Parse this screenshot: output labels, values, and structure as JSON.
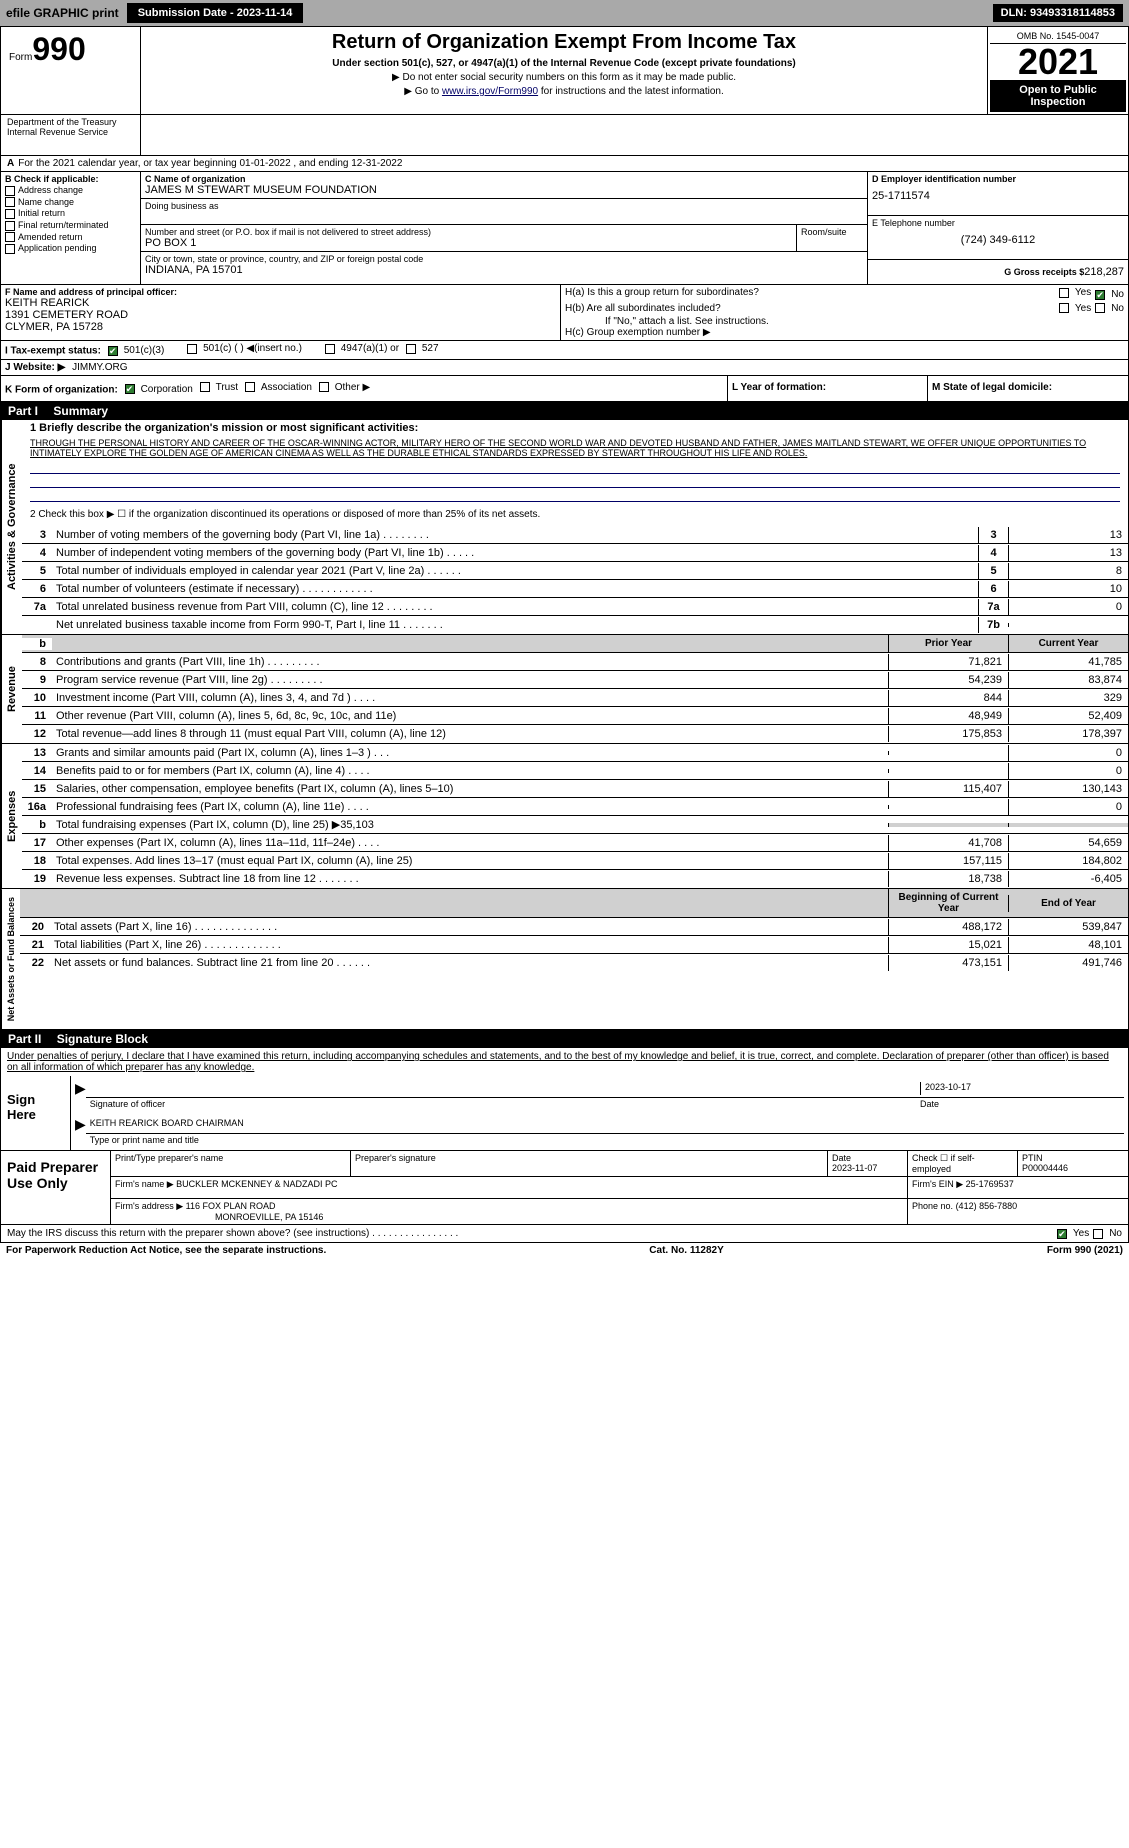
{
  "top_bar": {
    "efile": "efile GRAPHIC print",
    "submission": "Submission Date - 2023-11-14",
    "dln": "DLN: 93493318114853"
  },
  "header": {
    "form_label": "Form",
    "form_num": "990",
    "title": "Return of Organization Exempt From Income Tax",
    "subtitle": "Under section 501(c), 527, or 4947(a)(1) of the Internal Revenue Code (except private foundations)",
    "note1": "▶ Do not enter social security numbers on this form as it may be made public.",
    "note2_pre": "▶ Go to ",
    "note2_link": "www.irs.gov/Form990",
    "note2_post": " for instructions and the latest information.",
    "omb": "OMB No. 1545-0047",
    "year": "2021",
    "inspect": "Open to Public Inspection",
    "dept": "Department of the Treasury",
    "irs": "Internal Revenue Service"
  },
  "line_a": "For the 2021 calendar year, or tax year beginning 01-01-2022    , and ending 12-31-2022",
  "block_b": {
    "header": "B Check if applicable:",
    "items": [
      "Address change",
      "Name change",
      "Initial return",
      "Final return/terminated",
      "Amended return",
      "Application pending"
    ]
  },
  "block_c": {
    "name_label": "C Name of organization",
    "name": "JAMES M STEWART MUSEUM FOUNDATION",
    "dba_label": "Doing business as",
    "addr_label": "Number and street (or P.O. box if mail is not delivered to street address)",
    "room_label": "Room/suite",
    "addr": "PO BOX 1",
    "city_label": "City or town, state or province, country, and ZIP or foreign postal code",
    "city": "INDIANA, PA  15701"
  },
  "block_d": {
    "label": "D Employer identification number",
    "ein": "25-1711574"
  },
  "block_e": {
    "label": "E Telephone number",
    "phone": "(724) 349-6112"
  },
  "block_g": {
    "label": "G Gross receipts $",
    "amount": "218,287"
  },
  "block_f": {
    "label": "F Name and address of principal officer:",
    "name": "KEITH REARICK",
    "addr1": "1391 CEMETERY ROAD",
    "addr2": "CLYMER, PA  15728"
  },
  "block_h": {
    "ha": "H(a)  Is this a group return for subordinates?",
    "hb": "H(b)  Are all subordinates included?",
    "hb_note": "If \"No,\" attach a list. See instructions.",
    "hc": "H(c)  Group exemption number ▶",
    "yes": "Yes",
    "no": "No"
  },
  "block_i": {
    "label": "I   Tax-exempt status:",
    "opts": [
      "501(c)(3)",
      "501(c) (  ) ◀(insert no.)",
      "4947(a)(1) or",
      "527"
    ]
  },
  "block_j": {
    "label": "J   Website: ▶",
    "site": "JIMMY.ORG"
  },
  "block_k": {
    "label": "K Form of organization:",
    "opts": [
      "Corporation",
      "Trust",
      "Association",
      "Other ▶"
    ]
  },
  "block_l": {
    "label": "L Year of formation:"
  },
  "block_m": {
    "label": "M State of legal domicile:"
  },
  "part1": {
    "label": "Part I",
    "title": "Summary"
  },
  "summary": {
    "line1_label": "1  Briefly describe the organization's mission or most significant activities:",
    "line1_text": "THROUGH THE PERSONAL HISTORY AND CAREER OF THE OSCAR-WINNING ACTOR, MILITARY HERO OF THE SECOND WORLD WAR AND DEVOTED HUSBAND AND FATHER, JAMES MAITLAND STEWART, WE OFFER UNIQUE OPPORTUNITIES TO INTIMATELY EXPLORE THE GOLDEN AGE OF AMERICAN CINEMA AS WELL AS THE DURABLE ETHICAL STANDARDS EXPRESSED BY STEWART THROUGHOUT HIS LIFE AND ROLES.",
    "line2": "2   Check this box ▶ ☐  if the organization discontinued its operations or disposed of more than 25% of its net assets.",
    "gov_side": "Activities & Governance",
    "rev_side": "Revenue",
    "exp_side": "Expenses",
    "net_side": "Net Assets or Fund Balances",
    "lines_single": [
      {
        "n": "3",
        "t": "Number of voting members of the governing body (Part VI, line 1a)  .    .    .    .    .    .    .    .",
        "b": "3",
        "v": "13"
      },
      {
        "n": "4",
        "t": "Number of independent voting members of the governing body (Part VI, line 1b)   .    .    .    .    .",
        "b": "4",
        "v": "13"
      },
      {
        "n": "5",
        "t": "Total number of individuals employed in calendar year 2021 (Part V, line 2a)   .    .    .    .    .    .",
        "b": "5",
        "v": "8"
      },
      {
        "n": "6",
        "t": "Total number of volunteers (estimate if necessary)    .    .    .    .    .    .    .    .    .    .    .    .",
        "b": "6",
        "v": "10"
      },
      {
        "n": "7a",
        "t": "Total unrelated business revenue from Part VIII, column (C), line 12    .    .    .    .    .    .    .    .",
        "b": "7a",
        "v": "0"
      },
      {
        "n": "",
        "t": "Net unrelated business taxable income from Form 990-T, Part I, line 11   .    .    .    .    .    .    .",
        "b": "7b",
        "v": ""
      }
    ],
    "col_prior": "Prior Year",
    "col_current": "Current Year",
    "col_begin": "Beginning of Current Year",
    "col_end": "End of Year",
    "revenue": [
      {
        "n": "8",
        "t": "Contributions and grants (Part VIII, line 1h)   .    .    .    .    .    .    .    .    .",
        "p": "71,821",
        "c": "41,785"
      },
      {
        "n": "9",
        "t": "Program service revenue (Part VIII, line 2g)   .    .    .    .    .    .    .    .    .",
        "p": "54,239",
        "c": "83,874"
      },
      {
        "n": "10",
        "t": "Investment income (Part VIII, column (A), lines 3, 4, and 7d )   .    .    .    .",
        "p": "844",
        "c": "329"
      },
      {
        "n": "11",
        "t": "Other revenue (Part VIII, column (A), lines 5, 6d, 8c, 9c, 10c, and 11e)",
        "p": "48,949",
        "c": "52,409"
      },
      {
        "n": "12",
        "t": "Total revenue—add lines 8 through 11 (must equal Part VIII, column (A), line 12)",
        "p": "175,853",
        "c": "178,397"
      }
    ],
    "expenses": [
      {
        "n": "13",
        "t": "Grants and similar amounts paid (Part IX, column (A), lines 1–3 )  .    .    .",
        "p": "",
        "c": "0"
      },
      {
        "n": "14",
        "t": "Benefits paid to or for members (Part IX, column (A), line 4)   .    .    .    .",
        "p": "",
        "c": "0"
      },
      {
        "n": "15",
        "t": "Salaries, other compensation, employee benefits (Part IX, column (A), lines 5–10)",
        "p": "115,407",
        "c": "130,143"
      },
      {
        "n": "16a",
        "t": "Professional fundraising fees (Part IX, column (A), line 11e)   .    .    .    .",
        "p": "",
        "c": "0"
      },
      {
        "n": "b",
        "t": "Total fundraising expenses (Part IX, column (D), line 25) ▶35,103",
        "p": "GRAY",
        "c": "GRAY"
      },
      {
        "n": "17",
        "t": "Other expenses (Part IX, column (A), lines 11a–11d, 11f–24e)   .    .    .    .",
        "p": "41,708",
        "c": "54,659"
      },
      {
        "n": "18",
        "t": "Total expenses. Add lines 13–17 (must equal Part IX, column (A), line 25)",
        "p": "157,115",
        "c": "184,802"
      },
      {
        "n": "19",
        "t": "Revenue less expenses. Subtract line 18 from line 12  .    .    .    .    .    .    .",
        "p": "18,738",
        "c": "-6,405"
      }
    ],
    "net": [
      {
        "n": "20",
        "t": "Total assets (Part X, line 16)   .    .    .    .    .    .    .    .    .    .    .    .    .    .",
        "p": "488,172",
        "c": "539,847"
      },
      {
        "n": "21",
        "t": "Total liabilities (Part X, line 26)    .    .    .    .    .    .    .    .    .    .    .    .    .",
        "p": "15,021",
        "c": "48,101"
      },
      {
        "n": "22",
        "t": "Net assets or fund balances. Subtract line 21 from line 20  .    .    .    .    .    .",
        "p": "473,151",
        "c": "491,746"
      }
    ]
  },
  "part2": {
    "label": "Part II",
    "title": "Signature Block"
  },
  "sig": {
    "penalties": "Under penalties of perjury, I declare that I have examined this return, including accompanying schedules and statements, and to the best of my knowledge and belief, it is true, correct, and complete. Declaration of preparer (other than officer) is based on all information of which preparer has any knowledge.",
    "sign_here": "Sign Here",
    "sig_officer": "Signature of officer",
    "date": "Date",
    "date_val": "2023-10-17",
    "name_title": "KEITH REARICK  BOARD CHAIRMAN",
    "type_name": "Type or print name and title",
    "paid": "Paid Preparer Use Only",
    "print_name": "Print/Type preparer's name",
    "prep_sig": "Preparer's signature",
    "date2": "Date",
    "date2_val": "2023-11-07",
    "check_self": "Check ☐ if self-employed",
    "ptin_label": "PTIN",
    "ptin": "P00004446",
    "firm_name_label": "Firm's name     ▶",
    "firm_name": "BUCKLER MCKENNEY & NADZADI PC",
    "firm_ein_label": "Firm's EIN ▶",
    "firm_ein": "25-1769537",
    "firm_addr_label": "Firm's address ▶",
    "firm_addr1": "116 FOX PLAN ROAD",
    "firm_addr2": "MONROEVILLE, PA  15146",
    "phone_label": "Phone no.",
    "phone": "(412) 856-7880",
    "may_irs": "May the IRS discuss this return with the preparer shown above? (see instructions)   .    .    .    .    .    .    .    .    .    .    .    .    .    .    .    .",
    "yes": "Yes",
    "no": "No"
  },
  "footer": {
    "pra": "For Paperwork Reduction Act Notice, see the separate instructions.",
    "cat": "Cat. No. 11282Y",
    "form": "Form 990 (2021)"
  }
}
